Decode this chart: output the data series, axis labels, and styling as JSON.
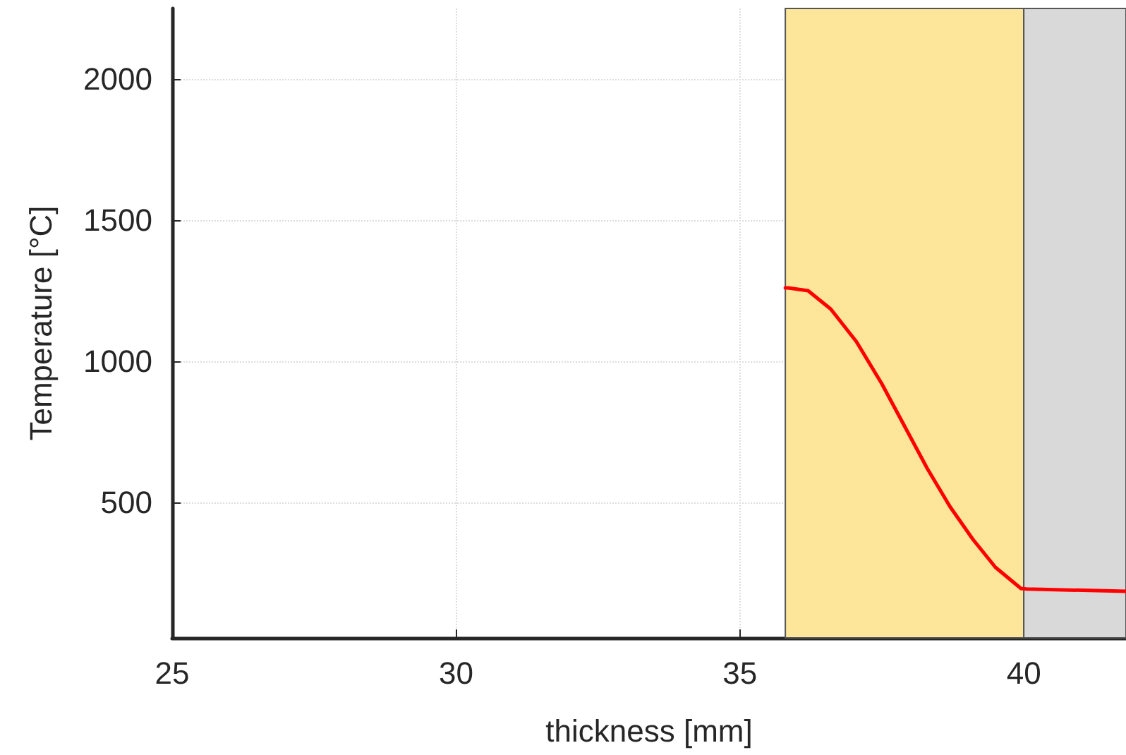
{
  "chart_data": {
    "type": "line",
    "xlabel": "thickness [mm]",
    "ylabel": "Temperature [°C]",
    "xlim": [
      25,
      41.8
    ],
    "xticks": [
      25,
      30,
      35,
      40
    ],
    "ylim": [
      20,
      2250
    ],
    "yticks": [
      500,
      1000,
      1500,
      2000
    ],
    "grid": true,
    "line_style": "solid",
    "marker": "none",
    "bands": [
      {
        "axis": "x",
        "from": 35.8,
        "to": 40,
        "color": "#fde59a"
      },
      {
        "axis": "x",
        "from": 40,
        "to": 41.8,
        "color": "#d9d9d9"
      }
    ],
    "series": [
      {
        "color": "#ff0000",
        "x": [
          35.8,
          35.85,
          36.2,
          36.6,
          37.05,
          37.5,
          37.9,
          38.3,
          38.7,
          39.1,
          39.5,
          39.95,
          40.05,
          41.8
        ],
        "values": [
          1260,
          1260,
          1250,
          1185,
          1070,
          920,
          770,
          620,
          485,
          370,
          270,
          195,
          193,
          185
        ]
      }
    ]
  }
}
